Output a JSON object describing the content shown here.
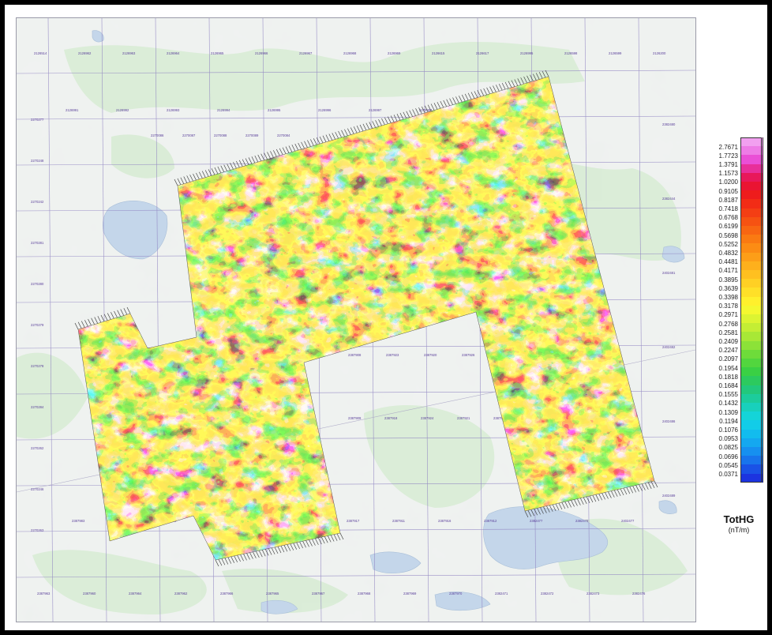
{
  "legend": {
    "title": "TotHG",
    "unit": "(nT/m)",
    "entries": [
      {
        "value": "2.7671",
        "color": "#f2a0f0"
      },
      {
        "value": "1.7723",
        "color": "#ee7ce6"
      },
      {
        "value": "1.3791",
        "color": "#ea4fd6"
      },
      {
        "value": "1.1573",
        "color": "#e82f9a"
      },
      {
        "value": "1.0200",
        "color": "#e8185a"
      },
      {
        "value": "0.9105",
        "color": "#ea1432"
      },
      {
        "value": "0.8187",
        "color": "#ee1c1c"
      },
      {
        "value": "0.7418",
        "color": "#f22c16"
      },
      {
        "value": "0.6768",
        "color": "#f43e14"
      },
      {
        "value": "0.6199",
        "color": "#f65212"
      },
      {
        "value": "0.5698",
        "color": "#f86612"
      },
      {
        "value": "0.5252",
        "color": "#fa7a12"
      },
      {
        "value": "0.4832",
        "color": "#fc8c14"
      },
      {
        "value": "0.4481",
        "color": "#fd9e18"
      },
      {
        "value": "0.4171",
        "color": "#feb01c"
      },
      {
        "value": "0.3895",
        "color": "#ffc020"
      },
      {
        "value": "0.3639",
        "color": "#ffd024"
      },
      {
        "value": "0.3398",
        "color": "#ffe028"
      },
      {
        "value": "0.3178",
        "color": "#fff02c"
      },
      {
        "value": "0.2971",
        "color": "#f4f830"
      },
      {
        "value": "0.2768",
        "color": "#dcf432"
      },
      {
        "value": "0.2581",
        "color": "#c4ee34"
      },
      {
        "value": "0.2409",
        "color": "#a8e836"
      },
      {
        "value": "0.2247",
        "color": "#8ce238"
      },
      {
        "value": "0.2097",
        "color": "#6edc3a"
      },
      {
        "value": "0.1954",
        "color": "#52d63e"
      },
      {
        "value": "0.1818",
        "color": "#3ad044"
      },
      {
        "value": "0.1684",
        "color": "#2cca5e"
      },
      {
        "value": "0.1555",
        "color": "#22c87c"
      },
      {
        "value": "0.1432",
        "color": "#1ccc9c"
      },
      {
        "value": "0.1309",
        "color": "#18d0bc"
      },
      {
        "value": "0.1194",
        "color": "#14d4d8"
      },
      {
        "value": "0.1076",
        "color": "#12cce8"
      },
      {
        "value": "0.0953",
        "color": "#12bcee"
      },
      {
        "value": "0.0825",
        "color": "#14a8f0"
      },
      {
        "value": "0.0696",
        "color": "#1690f0"
      },
      {
        "value": "0.0545",
        "color": "#1874ec"
      },
      {
        "value": "0.0371",
        "color": "#1a52e6"
      },
      {
        "value": "",
        "color": "#1c34e0"
      }
    ]
  },
  "claims": {
    "row1": [
      "2126514",
      "2126962",
      "2126963",
      "2126964",
      "2126965",
      "2126966",
      "2126967",
      "2126968",
      "2126969",
      "2126615",
      "2126617",
      "2126995",
      "2126598",
      "2126599",
      "2126200"
    ],
    "row2": [
      "2126991",
      "2126992",
      "2126993",
      "2126994",
      "2126995",
      "2126996",
      "2126997",
      "2270083",
      "2126998",
      "2126096"
    ],
    "row3": [
      "2270086",
      "2270087",
      "2270088",
      "2270089",
      "2270084"
    ],
    "row_center": [
      "2387908",
      "2387923",
      "2387920",
      "2387926"
    ],
    "row_center2": [
      "2387909",
      "2387918",
      "2387924",
      "2387921",
      "2387913"
    ],
    "row_bottom": [
      "2387983",
      "2387986",
      "2387993",
      "2387992",
      "2387914",
      "2387915",
      "2387917",
      "2387911",
      "2387916",
      "2387912",
      "2382477",
      "2382478",
      "2402477"
    ],
    "row_last": [
      "2387963",
      "2387960",
      "2387964",
      "2387962",
      "2387966",
      "2387965",
      "2387967",
      "2387968",
      "2387969",
      "2387970",
      "2382471",
      "2382472",
      "2382473",
      "2382476"
    ],
    "left_col": [
      "2270277",
      "2270248",
      "2270242",
      "2270281",
      "2270280",
      "2270279",
      "2270278",
      "2270284",
      "2270262",
      "2270246",
      "2270263"
    ],
    "right_col": [
      "2382480",
      "2382444",
      "2402481",
      "2402482",
      "2402486",
      "2402489"
    ]
  },
  "colors": {
    "map_bg": "#eef1ef",
    "forest": "#d9ecd6",
    "water": "#c4d6ea",
    "grid": "#8c7fc0",
    "claim_text": "#5a3f9a"
  }
}
